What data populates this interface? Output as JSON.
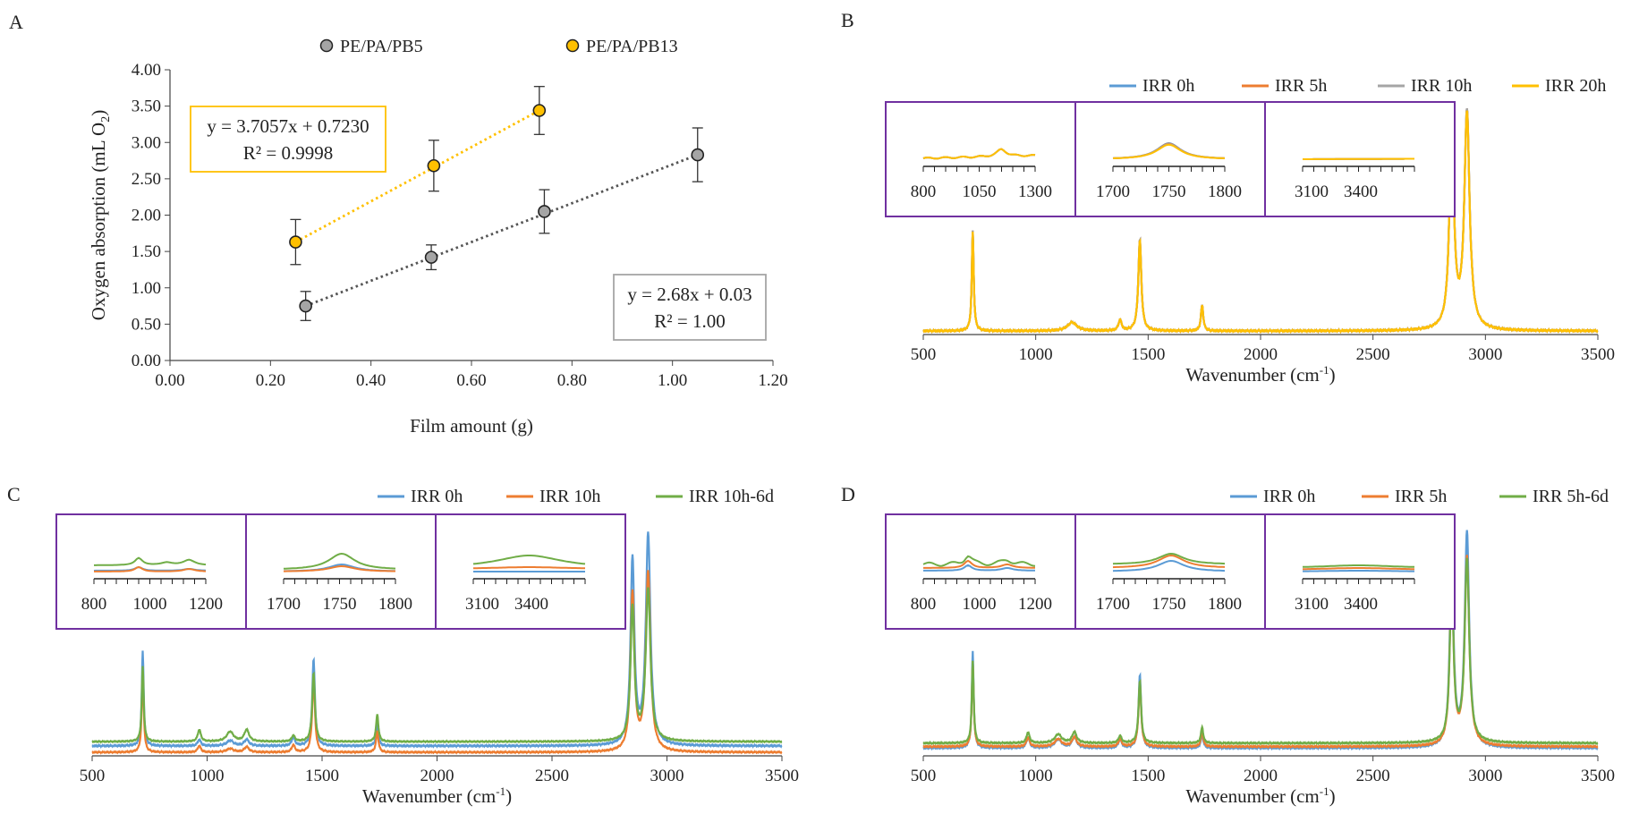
{
  "chart_data": [
    {
      "panel": "A",
      "type": "scatter",
      "xlabel": "Film amount (g)",
      "ylabel_main": "Oxygen absorption (mL O",
      "ylabel_sub": "2",
      "ylabel_end": ")",
      "xlim": [
        0,
        1.2
      ],
      "ylim": [
        0,
        4
      ],
      "x_ticks": [
        "0.00",
        "0.20",
        "0.40",
        "0.60",
        "0.80",
        "1.00",
        "1.20"
      ],
      "y_ticks": [
        "0.00",
        "0.50",
        "1.00",
        "1.50",
        "2.00",
        "2.50",
        "3.00",
        "3.50",
        "4.00"
      ],
      "series": [
        {
          "name": "PE/PA/PB5",
          "color": "#a5a5a5",
          "trend_color": "#555555",
          "x": [
            0.27,
            0.52,
            0.745,
            1.05
          ],
          "y": [
            0.75,
            1.42,
            2.05,
            2.83
          ],
          "err": [
            0.2,
            0.17,
            0.3,
            0.37
          ],
          "trend": [
            [
              0.27,
              0.75
            ],
            [
              1.05,
              2.83
            ]
          ],
          "equation": "y = 2.68x + 0.03",
          "r2": "R² = 1.00",
          "box_color": "#a5a5a5"
        },
        {
          "name": "PE/PA/PB13",
          "color": "#ffc000",
          "trend_color": "#ffc000",
          "x": [
            0.25,
            0.525,
            0.735
          ],
          "y": [
            1.63,
            2.68,
            3.44
          ],
          "err": [
            0.31,
            0.35,
            0.33
          ],
          "trend": [
            [
              0.25,
              1.63
            ],
            [
              0.735,
              3.44
            ]
          ],
          "equation": "y = 3.7057x + 0.7230",
          "r2": "R² = 0.9998",
          "box_color": "#ffc000"
        }
      ]
    },
    {
      "panel": "B",
      "type": "line",
      "xlabel_main": "Wavenumber (cm",
      "xlabel_sup": "-1",
      "xlabel_end": ")",
      "xlim": [
        500,
        3500
      ],
      "x_ticks": [
        "500",
        "1000",
        "1500",
        "2000",
        "2500",
        "3000",
        "3500"
      ],
      "series": [
        {
          "name": "IRR 0h",
          "color": "#5b9bd5"
        },
        {
          "name": "IRR 5h",
          "color": "#ed7d31"
        },
        {
          "name": "IRR 10h",
          "color": "#a5a5a5"
        },
        {
          "name": "IRR 20h",
          "color": "#ffc000"
        }
      ],
      "insets": [
        {
          "ticks": [
            "800",
            "1050",
            "1300"
          ]
        },
        {
          "ticks": [
            "1700",
            "1750",
            "1800"
          ]
        },
        {
          "ticks": [
            "3100",
            "3400"
          ]
        }
      ]
    },
    {
      "panel": "C",
      "type": "line",
      "xlabel_main": "Wavenumber (cm",
      "xlabel_sup": "-1",
      "xlabel_end": ")",
      "xlim": [
        500,
        3500
      ],
      "x_ticks": [
        "500",
        "1000",
        "1500",
        "2000",
        "2500",
        "3000",
        "3500"
      ],
      "series": [
        {
          "name": "IRR 0h",
          "color": "#5b9bd5"
        },
        {
          "name": "IRR 10h",
          "color": "#ed7d31"
        },
        {
          "name": "IRR 10h-6d",
          "color": "#70ad47"
        }
      ],
      "insets": [
        {
          "ticks": [
            "800",
            "1000",
            "1200"
          ]
        },
        {
          "ticks": [
            "1700",
            "1750",
            "1800"
          ]
        },
        {
          "ticks": [
            "3100",
            "3400"
          ]
        }
      ]
    },
    {
      "panel": "D",
      "type": "line",
      "xlabel_main": "Wavenumber (cm",
      "xlabel_sup": "-1",
      "xlabel_end": ")",
      "xlim": [
        500,
        3500
      ],
      "x_ticks": [
        "500",
        "1000",
        "1500",
        "2000",
        "2500",
        "3000",
        "3500"
      ],
      "series": [
        {
          "name": "IRR 0h",
          "color": "#5b9bd5"
        },
        {
          "name": "IRR 5h",
          "color": "#ed7d31"
        },
        {
          "name": "IRR 5h-6d",
          "color": "#70ad47"
        }
      ],
      "insets": [
        {
          "ticks": [
            "800",
            "1000",
            "1200"
          ]
        },
        {
          "ticks": [
            "1700",
            "1750",
            "1800"
          ]
        },
        {
          "ticks": [
            "3100",
            "3400"
          ]
        }
      ]
    }
  ],
  "inset_border_color": "#7030a0"
}
